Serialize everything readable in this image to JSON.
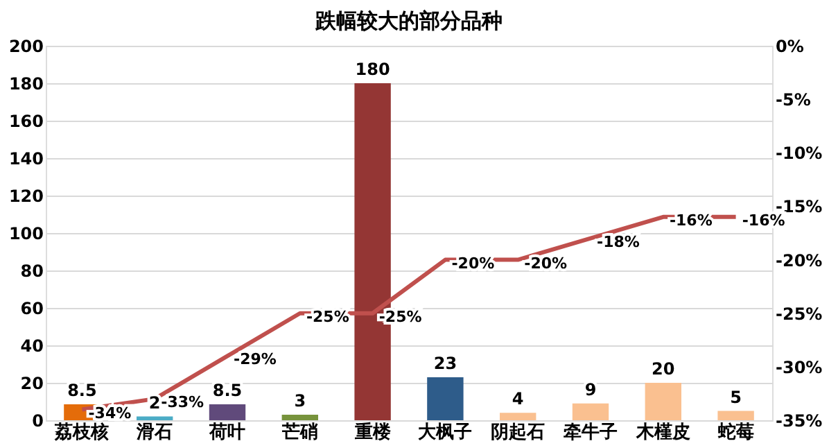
{
  "chart_data": {
    "type": "bar",
    "title": "跌幅较大的部分品种",
    "categories": [
      "荔枝核",
      "滑石",
      "荷叶",
      "芒硝",
      "重楼",
      "大枫子",
      "阴起石",
      "牵牛子",
      "木槿皮",
      "蛇莓"
    ],
    "values": [
      8.5,
      2,
      8.5,
      3,
      180,
      23,
      4,
      9,
      20,
      5
    ],
    "colors": [
      "#e46c0a",
      "#4bacc6",
      "#604a7b",
      "#77933c",
      "#943634",
      "#2e5c8a",
      "#fac090",
      "#fac090",
      "#fac090",
      "#fac090"
    ],
    "data_labels": true,
    "series": [
      {
        "type": "line",
        "axis": "y2",
        "color": "#c0504d",
        "values": [
          -34,
          -33,
          -29,
          -25,
          -25,
          -20,
          -20,
          -18,
          -16,
          -16
        ],
        "value_labels": [
          "-34%",
          "-33%",
          "-29%",
          "-25%",
          "-25%",
          "-20%",
          "-20%",
          "-18%",
          "-16%",
          "-16%"
        ]
      }
    ],
    "ylim": [
      0,
      200
    ],
    "yticks": [
      0,
      20,
      40,
      60,
      80,
      100,
      120,
      140,
      160,
      180,
      200
    ],
    "y2lim": [
      -35,
      0
    ],
    "y2ticks": [
      {
        "value": -35,
        "label": "-35%"
      },
      {
        "value": -30,
        "label": "-30%"
      },
      {
        "value": -25,
        "label": "-25%"
      },
      {
        "value": -20,
        "label": "-20%"
      },
      {
        "value": -15,
        "label": "-15%"
      },
      {
        "value": -10,
        "label": "-10%"
      },
      {
        "value": -5,
        "label": "-5%"
      },
      {
        "value": 0,
        "label": "0%"
      }
    ],
    "grid": "y",
    "legend": false
  }
}
